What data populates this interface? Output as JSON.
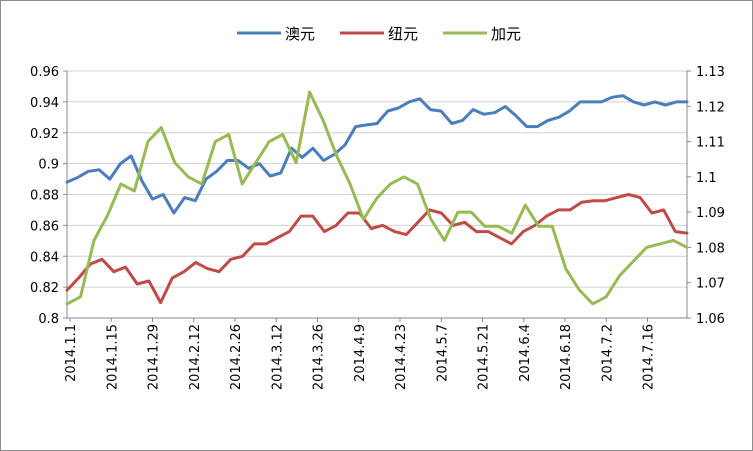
{
  "chart_data": {
    "type": "line",
    "title": "",
    "xlabel": "",
    "ylabel": "",
    "legend_position": "top",
    "grid": "horizontal",
    "x_tick_labels": [
      "2014.1.1",
      "2014.1.15",
      "2014.1.29",
      "2014.2.12",
      "2014.2.26",
      "2014.3.12",
      "2014.3.26",
      "2014.4.9",
      "2014.4.23",
      "2014.5.7",
      "2014.5.21",
      "2014.6.4",
      "2014.6.18",
      "2014.7.2",
      "2014.7.16"
    ],
    "y_left": {
      "ticks": [
        "0.8",
        "0.82",
        "0.84",
        "0.86",
        "0.88",
        "0.9",
        "0.92",
        "0.94",
        "0.96"
      ],
      "range": [
        0.8,
        0.96
      ]
    },
    "y_right": {
      "ticks": [
        "1.06",
        "1.07",
        "1.08",
        "1.09",
        "1.1",
        "1.11",
        "1.12",
        "1.13"
      ],
      "range": [
        1.06,
        1.13
      ]
    },
    "series": [
      {
        "name": "澳元",
        "axis": "left",
        "color": "#4a7ebb",
        "values": [
          0.888,
          0.891,
          0.895,
          0.896,
          0.89,
          0.9,
          0.905,
          0.889,
          0.877,
          0.88,
          0.868,
          0.878,
          0.876,
          0.89,
          0.895,
          0.902,
          0.902,
          0.897,
          0.9,
          0.892,
          0.894,
          0.91,
          0.904,
          0.91,
          0.902,
          0.906,
          0.912,
          0.924,
          0.925,
          0.926,
          0.934,
          0.936,
          0.94,
          0.942,
          0.935,
          0.934,
          0.926,
          0.928,
          0.935,
          0.932,
          0.933,
          0.937,
          0.931,
          0.924,
          0.924,
          0.928,
          0.93,
          0.934,
          0.94,
          0.94,
          0.94,
          0.943,
          0.944,
          0.94,
          0.938,
          0.94,
          0.938,
          0.94,
          0.94
        ],
        "dates_note": ""
      },
      {
        "name": "纽元",
        "axis": "left",
        "color": "#be4b48",
        "values": [
          0.818,
          0.826,
          0.835,
          0.838,
          0.83,
          0.833,
          0.822,
          0.824,
          0.81,
          0.826,
          0.83,
          0.836,
          0.832,
          0.83,
          0.838,
          0.84,
          0.848,
          0.848,
          0.852,
          0.856,
          0.866,
          0.866,
          0.856,
          0.86,
          0.868,
          0.868,
          0.858,
          0.86,
          0.856,
          0.854,
          0.862,
          0.87,
          0.868,
          0.86,
          0.862,
          0.856,
          0.856,
          0.852,
          0.848,
          0.856,
          0.86,
          0.866,
          0.87,
          0.87,
          0.875,
          0.876,
          0.876,
          0.878,
          0.88,
          0.878,
          0.868,
          0.87,
          0.856,
          0.855
        ]
      },
      {
        "name": "加元",
        "axis": "right",
        "color": "#98b954",
        "values": [
          1.064,
          1.066,
          1.082,
          1.089,
          1.098,
          1.096,
          1.11,
          1.114,
          1.104,
          1.1,
          1.098,
          1.11,
          1.112,
          1.098,
          1.104,
          1.11,
          1.112,
          1.104,
          1.124,
          1.116,
          1.106,
          1.098,
          1.088,
          1.094,
          1.098,
          1.1,
          1.098,
          1.088,
          1.082,
          1.09,
          1.09,
          1.086,
          1.086,
          1.084,
          1.092,
          1.086,
          1.086,
          1.074,
          1.068,
          1.064,
          1.066,
          1.072,
          1.076,
          1.08,
          1.081,
          1.082,
          1.08
        ]
      }
    ]
  },
  "legend": [
    {
      "label": "澳元",
      "color": "#4a7ebb"
    },
    {
      "label": "纽元",
      "color": "#be4b48"
    },
    {
      "label": "加元",
      "color": "#98b954"
    }
  ]
}
